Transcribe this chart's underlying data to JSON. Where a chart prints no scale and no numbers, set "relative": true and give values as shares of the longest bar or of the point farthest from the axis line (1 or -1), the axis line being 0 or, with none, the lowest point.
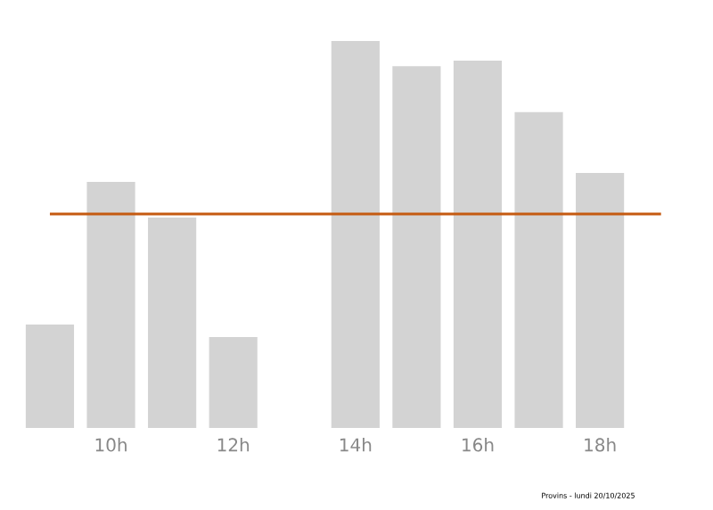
{
  "chart_data": {
    "type": "bar",
    "relative": true,
    "categories": [
      null,
      "10h",
      null,
      "12h",
      null,
      "14h",
      null,
      "16h",
      null,
      "18h",
      null
    ],
    "values": [
      0.267,
      0.636,
      0.544,
      0.235,
      0,
      1,
      0.935,
      0.949,
      0.816,
      0.659,
      0
    ],
    "color": "#d3d3d3",
    "ref_lines": [
      {
        "axis": "y",
        "value": 0.553,
        "color": "#c55a11"
      }
    ],
    "annotations": [
      "Provins - lundi 20/10/2025"
    ]
  }
}
